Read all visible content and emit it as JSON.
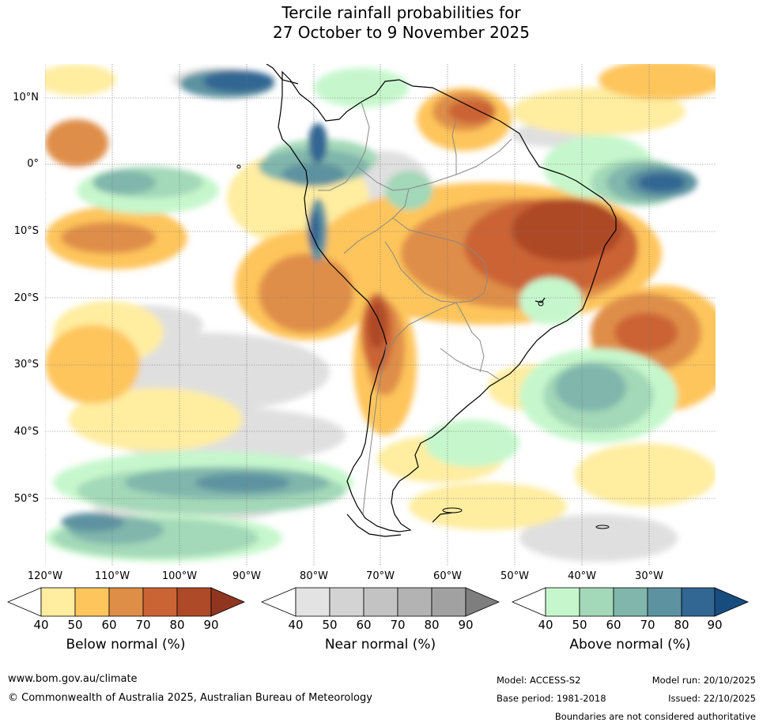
{
  "title": {
    "line1": "Tercile rainfall probabilities for",
    "line2": "27 October to 9 November 2025"
  },
  "map": {
    "lat_labels": [
      "10°N",
      "0°",
      "10°S",
      "20°S",
      "30°S",
      "40°S",
      "50°S"
    ],
    "lon_labels": [
      "120°W",
      "110°W",
      "100°W",
      "90°W",
      "80°W",
      "70°W",
      "60°W",
      "50°W",
      "40°W",
      "30°W"
    ]
  },
  "colorbars": [
    {
      "label": "Below normal (%)",
      "ticks": [
        "40",
        "50",
        "60",
        "70",
        "80",
        "90"
      ],
      "colors": [
        "#ffeda0",
        "#fec55c",
        "#df8e48",
        "#cb6434",
        "#ae4a28",
        "#8f3520"
      ]
    },
    {
      "label": "Near normal (%)",
      "ticks": [
        "40",
        "50",
        "60",
        "70",
        "80",
        "90"
      ],
      "colors": [
        "#e3e3e3",
        "#d3d3d3",
        "#c3c3c3",
        "#b3b3b3",
        "#a1a1a1",
        "#7e7e7e"
      ]
    },
    {
      "label": "Above normal (%)",
      "ticks": [
        "40",
        "50",
        "60",
        "70",
        "80",
        "90"
      ],
      "colors": [
        "#c6f7cc",
        "#a3d8b8",
        "#80b6ac",
        "#5d93a0",
        "#326693",
        "#174c7e"
      ]
    }
  ],
  "footer": {
    "url": "www.bom.gov.au/climate",
    "copyright": "© Commonwealth of Australia 2025, Australian Bureau of Meteorology",
    "model": "Model: ACCESS-S2",
    "base_period": "Base period: 1981-2018",
    "model_run": "Model run: 20/10/2025",
    "issued": "Issued: 22/10/2025",
    "disclaimer": "Boundaries are not considered authoritative"
  }
}
